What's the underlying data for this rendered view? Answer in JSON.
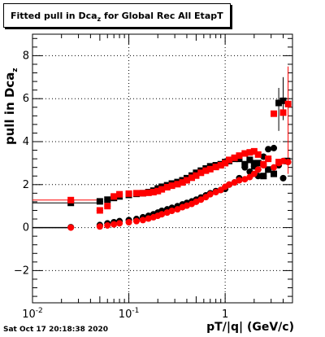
{
  "title": {
    "main": "Fitted pull in Dca",
    "sub": "z",
    "rest": " for Global Rec All EtapT"
  },
  "ylabel": {
    "main": "pull in Dca",
    "sub": "z"
  },
  "xlabel": "pT/|q| (GeV/c)",
  "timestamp": "Sat Oct 17 20:18:38 2020",
  "colors": {
    "black": "#000000",
    "red": "#ff0000",
    "grid": "#000000"
  },
  "chart_data": {
    "type": "scatter",
    "x_scale": "log",
    "xlim": [
      0.01,
      5
    ],
    "ylim": [
      -3.5,
      9
    ],
    "grid": true,
    "x_tick_labels": [
      "10^-2",
      "10^-1",
      "1"
    ],
    "y_tick_labels": [
      "−2",
      "0",
      "2",
      "4",
      "6",
      "8"
    ],
    "series": [
      {
        "marker": "square",
        "color": "black",
        "x": [
          0.025,
          0.05,
          0.06,
          0.07,
          0.08,
          0.1,
          0.12,
          0.14,
          0.16,
          0.18,
          0.2,
          0.22,
          0.25,
          0.28,
          0.32,
          0.36,
          0.4,
          0.45,
          0.5,
          0.56,
          0.63,
          0.7,
          0.8,
          0.9,
          1.0,
          1.1,
          1.25,
          1.4,
          1.6,
          1.8,
          2.0,
          2.2,
          2.5,
          2.8,
          3.2,
          3.6,
          4.0,
          4.4
        ],
        "y": [
          1.15,
          1.22,
          1.3,
          1.38,
          1.45,
          1.52,
          1.57,
          1.6,
          1.65,
          1.72,
          1.82,
          1.9,
          1.97,
          2.05,
          2.12,
          2.2,
          2.3,
          2.42,
          2.55,
          2.65,
          2.75,
          2.85,
          2.9,
          2.95,
          3.05,
          3.1,
          3.2,
          3.2,
          2.95,
          3.15,
          2.85,
          3.0,
          2.4,
          2.7,
          2.5,
          5.8,
          5.9,
          3.1
        ]
      },
      {
        "marker": "circle",
        "color": "black",
        "x": [
          0.025,
          0.05,
          0.06,
          0.07,
          0.08,
          0.1,
          0.12,
          0.14,
          0.16,
          0.18,
          0.2,
          0.22,
          0.25,
          0.28,
          0.32,
          0.36,
          0.4,
          0.45,
          0.5,
          0.56,
          0.63,
          0.7,
          0.8,
          0.9,
          1.0,
          1.1,
          1.25,
          1.4,
          1.6,
          1.8,
          2.0,
          2.2,
          2.5,
          2.8,
          3.2,
          3.6,
          4.0
        ],
        "y": [
          0.02,
          0.12,
          0.2,
          0.25,
          0.3,
          0.35,
          0.4,
          0.48,
          0.55,
          0.62,
          0.7,
          0.78,
          0.85,
          0.92,
          1.0,
          1.08,
          1.15,
          1.22,
          1.3,
          1.4,
          1.5,
          1.6,
          1.7,
          1.75,
          1.8,
          2.0,
          2.1,
          2.3,
          2.8,
          2.6,
          3.0,
          2.4,
          3.3,
          3.65,
          3.7,
          2.9,
          2.3
        ]
      },
      {
        "marker": "square",
        "color": "red",
        "x": [
          0.025,
          0.05,
          0.06,
          0.07,
          0.08,
          0.1,
          0.12,
          0.14,
          0.16,
          0.18,
          0.2,
          0.22,
          0.25,
          0.28,
          0.32,
          0.36,
          0.4,
          0.45,
          0.5,
          0.56,
          0.63,
          0.7,
          0.8,
          0.9,
          1.0,
          1.1,
          1.25,
          1.4,
          1.6,
          1.8,
          2.0,
          2.2,
          2.5,
          2.8,
          3.2,
          3.6,
          4.0,
          4.5
        ],
        "y": [
          1.28,
          0.8,
          1.0,
          1.45,
          1.55,
          1.58,
          1.6,
          1.6,
          1.62,
          1.65,
          1.7,
          1.78,
          1.88,
          1.95,
          2.02,
          2.1,
          2.2,
          2.32,
          2.42,
          2.55,
          2.65,
          2.72,
          2.82,
          2.9,
          3.0,
          3.15,
          3.25,
          3.35,
          3.45,
          3.5,
          3.55,
          3.4,
          2.95,
          3.2,
          5.3,
          3.05,
          5.35,
          5.75
        ]
      },
      {
        "marker": "circle",
        "color": "red",
        "x": [
          0.025,
          0.05,
          0.06,
          0.07,
          0.08,
          0.1,
          0.12,
          0.14,
          0.16,
          0.18,
          0.2,
          0.22,
          0.25,
          0.28,
          0.32,
          0.36,
          0.4,
          0.45,
          0.5,
          0.56,
          0.63,
          0.7,
          0.8,
          0.9,
          1.0,
          1.1,
          1.25,
          1.4,
          1.6,
          1.8,
          2.0,
          2.2,
          2.5,
          2.8,
          3.2,
          3.6,
          4.0,
          4.5
        ],
        "y": [
          0.0,
          0.05,
          0.1,
          0.15,
          0.2,
          0.25,
          0.3,
          0.35,
          0.42,
          0.48,
          0.55,
          0.62,
          0.7,
          0.78,
          0.85,
          0.95,
          1.02,
          1.1,
          1.2,
          1.3,
          1.42,
          1.55,
          1.65,
          1.75,
          1.9,
          2.0,
          2.1,
          2.2,
          2.25,
          2.35,
          2.5,
          2.7,
          2.9,
          3.2,
          2.8,
          3.0,
          3.1,
          3.05
        ]
      }
    ]
  }
}
